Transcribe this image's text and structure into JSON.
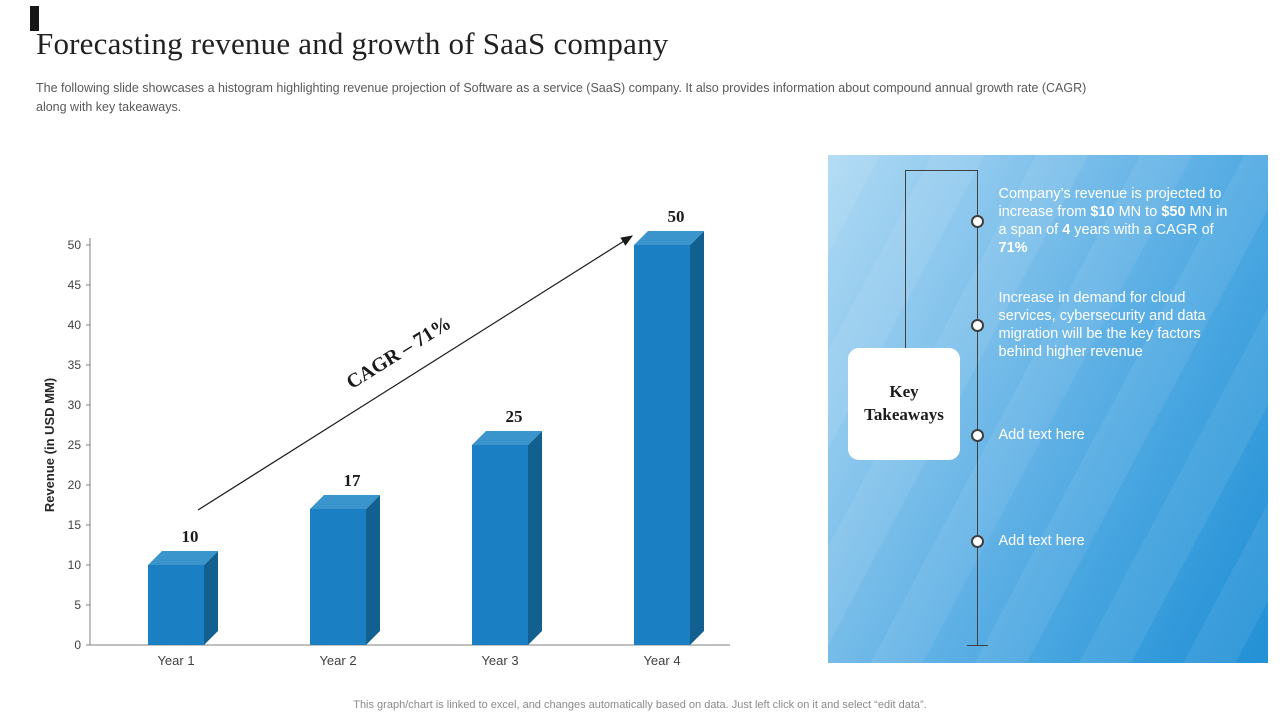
{
  "slide": {
    "title": "Forecasting revenue and growth of SaaS company",
    "subtitle": "The following slide showcases a histogram highlighting revenue projection of Software as a service (SaaS) company. It also provides information about compound annual growth rate (CAGR) along with key takeaways.",
    "footer": "This graph/chart is linked to excel, and changes automatically based on data. Just left click on it and select “edit data”."
  },
  "chart_data": {
    "type": "bar",
    "title": "",
    "categories": [
      "Year 1",
      "Year 2",
      "Year 3",
      "Year 4"
    ],
    "values": [
      10,
      17,
      25,
      50
    ],
    "xlabel": "",
    "ylabel": "Revenue (in USD MM)",
    "ylim": [
      0,
      50
    ],
    "ytick_step": 5,
    "grid": false,
    "legend": "none",
    "annotation": "CAGR – 71%",
    "bar_color": "#1b7fc4",
    "bar_side_color": "#12608f",
    "bar_top_color": "#3a95cd"
  },
  "takeaways": {
    "box_label": "Key Takeaways",
    "items": [
      {
        "segments": [
          {
            "t": "Company’s revenue is projected to increase from ",
            "b": false
          },
          {
            "t": "$10",
            "b": true
          },
          {
            "t": " MN to ",
            "b": false
          },
          {
            "t": "$50",
            "b": true
          },
          {
            "t": " MN in a span of ",
            "b": false
          },
          {
            "t": "4",
            "b": true
          },
          {
            "t": " years with a CAGR of ",
            "b": false
          },
          {
            "t": "71%",
            "b": true
          }
        ]
      },
      {
        "segments": [
          {
            "t": "Increase in demand for cloud services, cybersecurity and data migration will be the key factors behind higher revenue",
            "b": false
          }
        ]
      },
      {
        "segments": [
          {
            "t": "Add text here",
            "b": false
          }
        ]
      },
      {
        "segments": [
          {
            "t": "Add text here",
            "b": false
          }
        ]
      }
    ]
  }
}
